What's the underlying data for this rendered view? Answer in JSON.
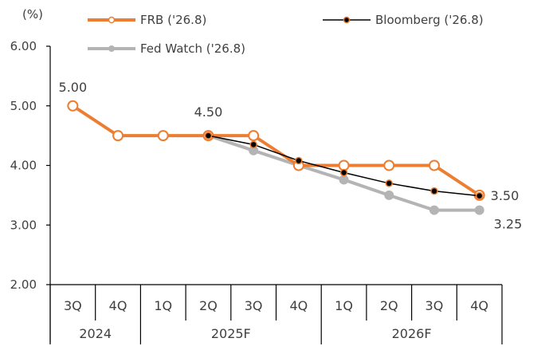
{
  "chart_data": {
    "type": "line",
    "yunit": "(%)",
    "ylim": [
      2.0,
      6.0
    ],
    "yticks": [
      "6.00",
      "5.00",
      "4.00",
      "3.00",
      "2.00"
    ],
    "quarters": [
      "3Q",
      "4Q",
      "1Q",
      "2Q",
      "3Q",
      "4Q",
      "1Q",
      "2Q",
      "3Q",
      "4Q"
    ],
    "years": [
      {
        "label": "2024",
        "span": [
          0,
          1
        ]
      },
      {
        "label": "2025F",
        "span": [
          2,
          5
        ]
      },
      {
        "label": "2026F",
        "span": [
          6,
          9
        ]
      }
    ],
    "series": [
      {
        "name": "FRB ('26.8)",
        "color": "#ed7d31",
        "values": [
          5.0,
          4.5,
          4.5,
          4.5,
          4.5,
          4.0,
          4.0,
          4.0,
          4.0,
          3.5
        ]
      },
      {
        "name": "Bloomberg ('26.8)",
        "color": "#000000",
        "values": [
          null,
          null,
          null,
          4.5,
          4.35,
          4.08,
          3.88,
          3.7,
          3.57,
          3.49
        ]
      },
      {
        "name": "Fed Watch ('26.8)",
        "color": "#b4b4b4",
        "values": [
          null,
          null,
          null,
          4.5,
          4.25,
          4.0,
          3.76,
          3.5,
          3.25,
          3.25
        ]
      }
    ],
    "annotations": [
      {
        "text": "5.00",
        "series": 0,
        "index": 0
      },
      {
        "text": "4.50",
        "series": 0,
        "index": 3
      },
      {
        "text": "3.50",
        "series": 0,
        "index": 9
      },
      {
        "text": "3.25",
        "series": 2,
        "index": 9
      }
    ],
    "legend_position": "top"
  }
}
